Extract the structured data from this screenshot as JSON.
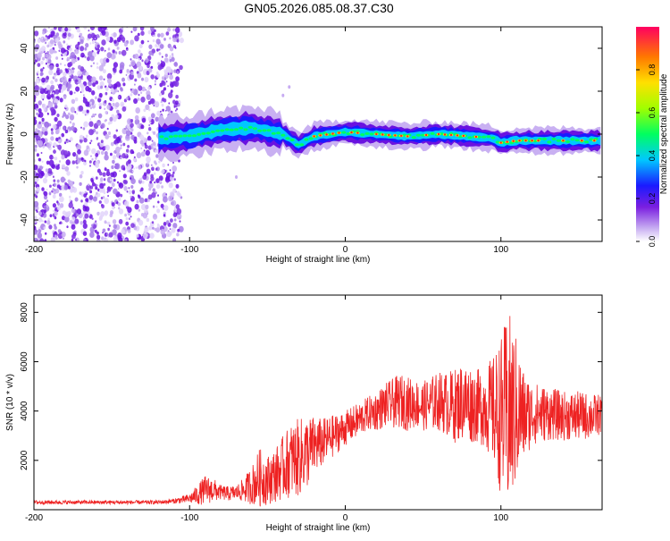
{
  "title": "GN05.2026.085.08.37.C30",
  "colors": {
    "snr_line": "#ee2222",
    "spec_weak": "#b48cf0",
    "spec_mid": "#6a12e0",
    "spec_core": "#1010ff",
    "spec_peak": "#ff2222"
  },
  "chart_data": [
    {
      "type": "heatmap",
      "name": "spectrogram",
      "xlabel": "Height of straight line (km)",
      "ylabel": "Frequency (Hz)",
      "xlim": [
        -200,
        165
      ],
      "ylim": [
        -50,
        50
      ],
      "xticks": [
        -200,
        -100,
        0,
        100
      ],
      "xtick_labels": [
        "-200",
        "-100",
        "0",
        "100"
      ],
      "yticks": [
        -40,
        -20,
        0,
        20,
        40
      ],
      "ytick_labels": [
        "-40",
        "-20",
        "0",
        "20",
        "40"
      ],
      "colorbar": {
        "label": "Normalized spectral amplitude",
        "range": [
          0,
          1
        ],
        "ticks": [
          0.0,
          0.2,
          0.4,
          0.6,
          0.8
        ],
        "tick_labels": [
          "0.0",
          "0.2",
          "0.4",
          "0.6",
          "0.8"
        ]
      },
      "noise_region_x": [
        -200,
        -105
      ],
      "signal_band_center": [
        {
          "x": -120,
          "f": -2
        },
        {
          "x": -100,
          "f": -1
        },
        {
          "x": -80,
          "f": 2
        },
        {
          "x": -60,
          "f": 3
        },
        {
          "x": -40,
          "f": 0
        },
        {
          "x": -30,
          "f": -5
        },
        {
          "x": -20,
          "f": -1
        },
        {
          "x": 0,
          "f": 1
        },
        {
          "x": 20,
          "f": 0
        },
        {
          "x": 40,
          "f": -1
        },
        {
          "x": 60,
          "f": 0
        },
        {
          "x": 80,
          "f": -1
        },
        {
          "x": 95,
          "f": -2
        },
        {
          "x": 100,
          "f": -4
        },
        {
          "x": 110,
          "f": -3
        },
        {
          "x": 130,
          "f": -3
        },
        {
          "x": 160,
          "f": -3
        }
      ]
    },
    {
      "type": "line",
      "name": "snr",
      "xlabel": "Height of straight line (km)",
      "ylabel": "SNR (10 * v/v)",
      "xlim": [
        -200,
        165
      ],
      "ylim": [
        0,
        8700
      ],
      "xticks": [
        -200,
        -100,
        0,
        100
      ],
      "xtick_labels": [
        "-200",
        "-100",
        "0",
        "100"
      ],
      "yticks": [
        2000,
        4000,
        6000,
        8000
      ],
      "ytick_labels": [
        "2000",
        "4000",
        "6000",
        "8000"
      ],
      "series": [
        {
          "name": "SNR",
          "x": [
            -200,
            -180,
            -160,
            -140,
            -120,
            -110,
            -100,
            -95,
            -90,
            -85,
            -80,
            -75,
            -70,
            -65,
            -60,
            -55,
            -50,
            -45,
            -40,
            -35,
            -30,
            -25,
            -20,
            -15,
            -10,
            -5,
            0,
            5,
            10,
            15,
            20,
            25,
            30,
            35,
            40,
            45,
            50,
            55,
            60,
            65,
            70,
            75,
            80,
            85,
            90,
            95,
            100,
            105,
            110,
            115,
            120,
            130,
            140,
            150,
            160,
            165
          ],
          "mean": [
            300,
            300,
            300,
            300,
            300,
            350,
            450,
            600,
            800,
            800,
            700,
            650,
            700,
            800,
            1000,
            1300,
            1200,
            1400,
            1700,
            2000,
            2100,
            2300,
            2600,
            2700,
            2900,
            3100,
            3300,
            3500,
            3700,
            3900,
            4000,
            4200,
            4300,
            4400,
            4300,
            4300,
            4200,
            4300,
            4400,
            4300,
            4200,
            4400,
            4300,
            4200,
            4200,
            4000,
            3800,
            3900,
            4000,
            3800,
            3900,
            3900,
            3800,
            3800,
            3800,
            3900
          ],
          "amplitude": [
            80,
            80,
            80,
            80,
            80,
            100,
            200,
            400,
            600,
            500,
            300,
            300,
            300,
            500,
            800,
            1200,
            1000,
            1100,
            1300,
            1500,
            1600,
            1500,
            1200,
            1000,
            900,
            800,
            700,
            700,
            700,
            700,
            800,
            900,
            1000,
            1100,
            1100,
            1000,
            1000,
            1100,
            1200,
            1300,
            1500,
            1600,
            1600,
            1500,
            1700,
            2200,
            3200,
            4200,
            3000,
            1800,
            1300,
            1100,
            1000,
            1000,
            900,
            800
          ]
        }
      ]
    }
  ]
}
